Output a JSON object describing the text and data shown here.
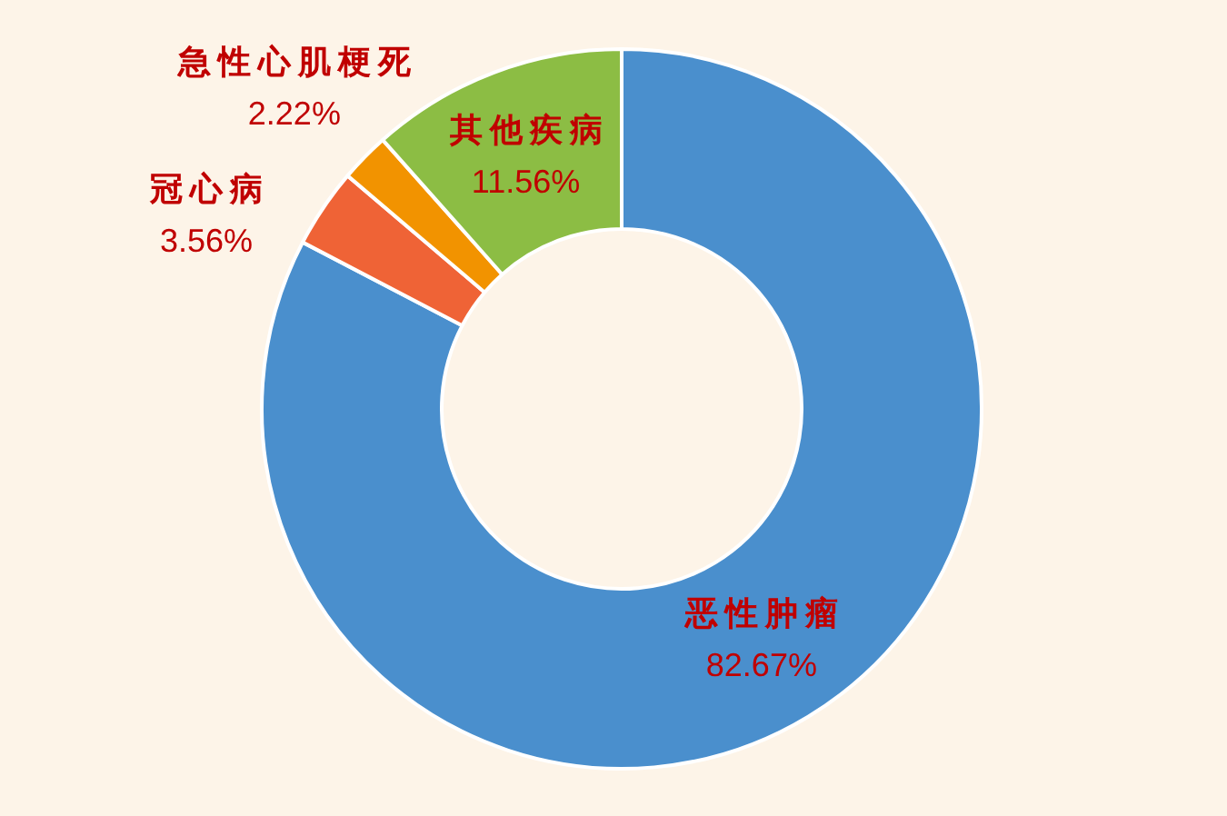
{
  "chart_data": {
    "type": "donut",
    "categories": [
      "恶性肿瘤",
      "冠心病",
      "急性心肌梗死",
      "其他疾病"
    ],
    "values": [
      82.67,
      3.56,
      2.22,
      11.56
    ],
    "colors": [
      "#4a8fcd",
      "#ef6336",
      "#f29300",
      "#8cbd44"
    ],
    "value_labels": [
      "82.67%",
      "3.56%",
      "2.22%",
      "11.56%"
    ]
  }
}
